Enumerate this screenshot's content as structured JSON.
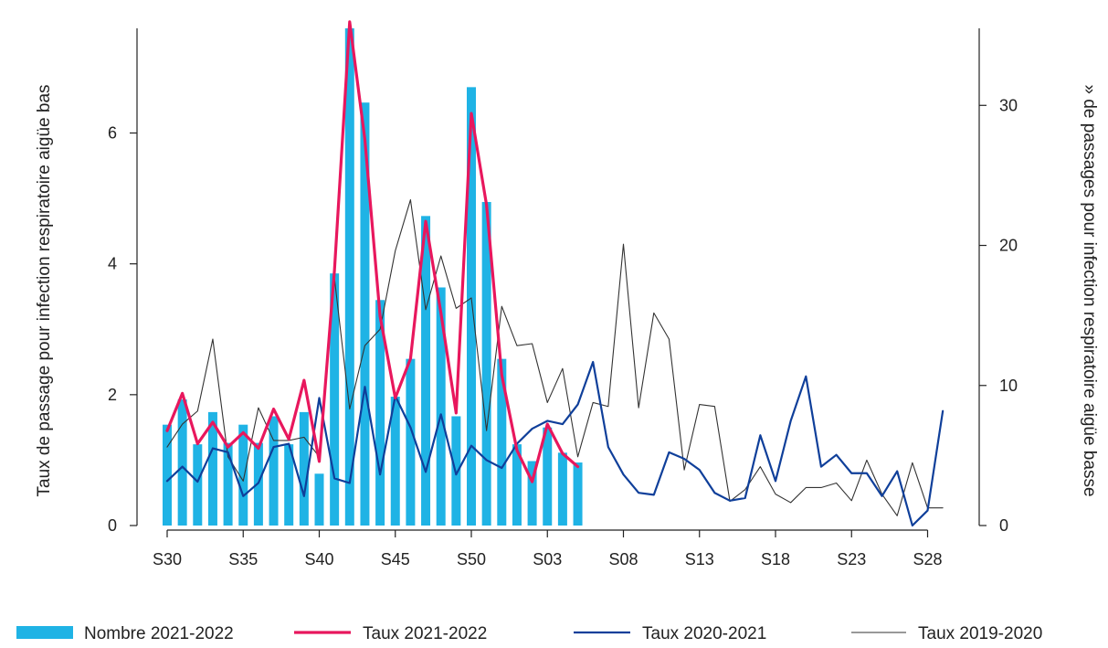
{
  "chart_data": {
    "type": "bar",
    "x_tick_labels": [
      "S30",
      "S35",
      "S40",
      "S45",
      "S50",
      "S03",
      "S08",
      "S13",
      "S18",
      "S23",
      "S28"
    ],
    "left_axis": {
      "label": "Taux de passage pour infection respiratoire aigüe bas",
      "ticks": [
        0,
        2,
        4,
        6
      ],
      "ylim": [
        0,
        7.6
      ]
    },
    "right_axis": {
      "label": "» de passages pour infection respiratoire aigüe basse",
      "ticks": [
        0,
        10,
        20,
        30
      ],
      "ylim": [
        0,
        35.5
      ]
    },
    "legend_position": "bottom",
    "series": [
      {
        "name": "Nombre 2021-2022",
        "type": "bar",
        "axis": "right",
        "color": "#1fb3e5",
        "values": [
          7.2,
          9.0,
          5.8,
          8.1,
          5.9,
          7.2,
          5.9,
          7.8,
          5.8,
          8.1,
          3.7,
          18.0,
          35.5,
          30.2,
          16.1,
          9.2,
          11.9,
          22.1,
          17.0,
          7.8,
          31.3,
          23.1,
          11.9,
          5.8,
          4.6,
          7.0,
          5.2,
          4.5
        ]
      },
      {
        "name": "Taux 2021-2022",
        "type": "line",
        "axis": "left",
        "color": "#e8175d",
        "values": [
          1.45,
          2.02,
          1.25,
          1.58,
          1.2,
          1.42,
          1.18,
          1.78,
          1.32,
          2.22,
          0.98,
          3.9,
          7.7,
          5.9,
          3.2,
          1.95,
          2.55,
          4.65,
          3.25,
          1.72,
          6.3,
          4.9,
          2.3,
          1.15,
          0.67,
          1.55,
          1.1,
          0.9
        ]
      },
      {
        "name": "Taux 2020-2021",
        "type": "line",
        "axis": "left",
        "color": "#0f3f9a",
        "values": [
          0.68,
          0.9,
          0.67,
          1.18,
          1.12,
          0.45,
          0.65,
          1.2,
          1.25,
          0.45,
          1.95,
          0.72,
          0.65,
          2.12,
          0.78,
          1.98,
          1.5,
          0.82,
          1.7,
          0.78,
          1.22,
          1.0,
          0.88,
          1.25,
          1.48,
          1.6,
          1.55,
          1.85,
          2.5,
          1.2,
          0.78,
          0.5,
          0.47,
          1.12,
          1.02,
          0.85,
          0.5,
          0.38,
          0.42,
          1.38,
          0.68,
          1.6,
          2.28,
          0.9,
          1.08,
          0.8,
          0.8,
          0.45,
          0.83,
          0.0,
          0.23,
          1.75
        ]
      },
      {
        "name": "Taux 2019-2020",
        "type": "line",
        "axis": "left",
        "color": "#333333",
        "values": [
          1.2,
          1.55,
          1.75,
          2.85,
          1.05,
          0.68,
          1.8,
          1.3,
          1.3,
          1.35,
          1.05,
          3.78,
          1.78,
          2.75,
          3.0,
          4.2,
          4.98,
          3.3,
          4.12,
          3.32,
          3.48,
          1.45,
          3.35,
          2.75,
          2.78,
          1.88,
          2.4,
          1.05,
          1.88,
          1.82,
          4.3,
          1.8,
          3.25,
          2.85,
          0.85,
          1.85,
          1.82,
          0.37,
          0.55,
          0.9,
          0.48,
          0.35,
          0.58,
          0.58,
          0.65,
          0.38,
          1.0,
          0.48,
          0.15,
          0.96,
          0.27,
          0.27
        ]
      }
    ]
  }
}
